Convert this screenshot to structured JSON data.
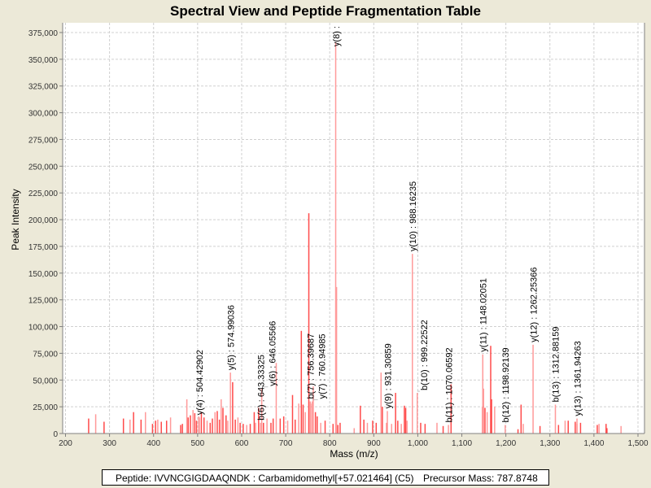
{
  "chart_data": {
    "type": "bar",
    "title": "Spectral View and Peptide Fragmentation Table",
    "xlabel": "Mass (m/z)",
    "ylabel": "Peak Intensity",
    "xlim": [
      200,
      1500
    ],
    "ylim": [
      0,
      375000
    ],
    "x_ticks": [
      200,
      300,
      400,
      500,
      600,
      700,
      800,
      900,
      1000,
      1100,
      1200,
      1300,
      1400,
      1500
    ],
    "y_ticks": [
      0,
      25000,
      50000,
      75000,
      100000,
      125000,
      150000,
      175000,
      200000,
      225000,
      250000,
      275000,
      300000,
      325000,
      350000,
      375000
    ],
    "grid": true,
    "colors": {
      "peak_dark": "#ff4a4a",
      "peak_light": "#ff9a9a",
      "label": "#000000"
    },
    "peaks": [
      [
        253,
        14000
      ],
      [
        269,
        18000
      ],
      [
        288,
        11000
      ],
      [
        332,
        14000
      ],
      [
        347,
        13000
      ],
      [
        355,
        20000
      ],
      [
        372,
        13000
      ],
      [
        382,
        20000
      ],
      [
        398,
        9000
      ],
      [
        405,
        12000
      ],
      [
        410,
        13000
      ],
      [
        418,
        11000
      ],
      [
        430,
        12000
      ],
      [
        439,
        15000
      ],
      [
        462,
        8000
      ],
      [
        466,
        9000
      ],
      [
        476,
        32000
      ],
      [
        479,
        15000
      ],
      [
        484,
        17000
      ],
      [
        490,
        22000
      ],
      [
        494,
        19000
      ],
      [
        498,
        12000
      ],
      [
        503,
        16000
      ],
      [
        509,
        20000
      ],
      [
        515,
        15000
      ],
      [
        522,
        12000
      ],
      [
        529,
        10000
      ],
      [
        534,
        14000
      ],
      [
        540,
        20000
      ],
      [
        545,
        21000
      ],
      [
        550,
        13000
      ],
      [
        554,
        32000
      ],
      [
        558,
        24000
      ],
      [
        565,
        17000
      ],
      [
        569,
        12000
      ],
      [
        580,
        48000
      ],
      [
        586,
        13000
      ],
      [
        592,
        15000
      ],
      [
        597,
        10000
      ],
      [
        604,
        9000
      ],
      [
        612,
        8000
      ],
      [
        620,
        9000
      ],
      [
        629,
        20000
      ],
      [
        632,
        10000
      ],
      [
        639,
        24000
      ],
      [
        650,
        10000
      ],
      [
        658,
        14000
      ],
      [
        667,
        10000
      ],
      [
        672,
        14000
      ],
      [
        679,
        66000
      ],
      [
        688,
        14000
      ],
      [
        696,
        16000
      ],
      [
        705,
        12000
      ],
      [
        716,
        36000
      ],
      [
        722,
        13000
      ],
      [
        730,
        28000
      ],
      [
        736,
        96000
      ],
      [
        740,
        27000
      ],
      [
        745,
        20000
      ],
      [
        753,
        206000
      ],
      [
        757,
        28000
      ],
      [
        763,
        44000
      ],
      [
        768,
        20000
      ],
      [
        772,
        16000
      ],
      [
        780,
        10000
      ],
      [
        790,
        12000
      ],
      [
        808,
        9000
      ],
      [
        816,
        137000
      ],
      [
        819,
        8000
      ],
      [
        824,
        10000
      ],
      [
        856,
        5000
      ],
      [
        870,
        26000
      ],
      [
        878,
        13000
      ],
      [
        886,
        10000
      ],
      [
        898,
        12000
      ],
      [
        906,
        10000
      ],
      [
        917,
        57000
      ],
      [
        920,
        25000
      ],
      [
        930,
        10000
      ],
      [
        941,
        9000
      ],
      [
        950,
        38000
      ],
      [
        955,
        12000
      ],
      [
        963,
        9000
      ],
      [
        970,
        26000
      ],
      [
        973,
        24000
      ],
      [
        976,
        12000
      ],
      [
        1007,
        10000
      ],
      [
        1017,
        9000
      ],
      [
        1044,
        10000
      ],
      [
        1058,
        7000
      ],
      [
        1076,
        46000
      ],
      [
        1147,
        25000
      ],
      [
        1149,
        42000
      ],
      [
        1153,
        24000
      ],
      [
        1158,
        20000
      ],
      [
        1166,
        82000
      ],
      [
        1168,
        32000
      ],
      [
        1175,
        25000
      ],
      [
        1228,
        4000
      ],
      [
        1235,
        27000
      ],
      [
        1240,
        9000
      ],
      [
        1278,
        7000
      ],
      [
        1320,
        8000
      ],
      [
        1335,
        12000
      ],
      [
        1342,
        12000
      ],
      [
        1358,
        11000
      ],
      [
        1362,
        9000
      ],
      [
        1370,
        10000
      ],
      [
        1408,
        8000
      ],
      [
        1412,
        9000
      ],
      [
        1428,
        9000
      ],
      [
        1430,
        5000
      ],
      [
        1462,
        7000
      ]
    ],
    "annotations": [
      {
        "label": "y(4) : 504.42902",
        "mz": 504.42902,
        "intensity": 15000
      },
      {
        "label": "y(5) : 574.99036",
        "mz": 574.99036,
        "intensity": 57000
      },
      {
        "label": "b(6) : 643.33325",
        "mz": 643.33325,
        "intensity": 10000
      },
      {
        "label": "y(6) : 646.05566",
        "mz": 646.05566,
        "intensity": 42000
      },
      {
        "label": "b(7) : 756.39687",
        "mz": 756.39687,
        "intensity": 30000
      },
      {
        "label": "y(7) : 760.94985",
        "mz": 760.94985,
        "intensity": 30000
      },
      {
        "label": "y(8) :",
        "mz": 814,
        "intensity": 366000
      },
      {
        "label": "y(9) : 931.30859",
        "mz": 931.30859,
        "intensity": 21000
      },
      {
        "label": "y(10) : 988.16235",
        "mz": 988.16235,
        "intensity": 168000
      },
      {
        "label": "b(10) : 999.22522",
        "mz": 999.22522,
        "intensity": 38000
      },
      {
        "label": "b(11) : 1070.06592",
        "mz": 1070.06592,
        "intensity": 8000
      },
      {
        "label": "y(11) : 1148.02051",
        "mz": 1148.02051,
        "intensity": 74000
      },
      {
        "label": "b(12) : 1198.92139",
        "mz": 1198.92139,
        "intensity": 8000
      },
      {
        "label": "y(12) : 1262.25366",
        "mz": 1262.25366,
        "intensity": 83000
      },
      {
        "label": "b(13) : 1312.88159",
        "mz": 1312.88159,
        "intensity": 27000
      },
      {
        "label": "y(13) : 1361.94263",
        "mz": 1361.94263,
        "intensity": 14000
      }
    ]
  },
  "legend": {
    "peptide": "Peptide: IVVNCGIGDAAQNDK : Carbamidomethyl[+57.021464] (C5)",
    "precursor": "Precursor Mass: 787.8748"
  }
}
